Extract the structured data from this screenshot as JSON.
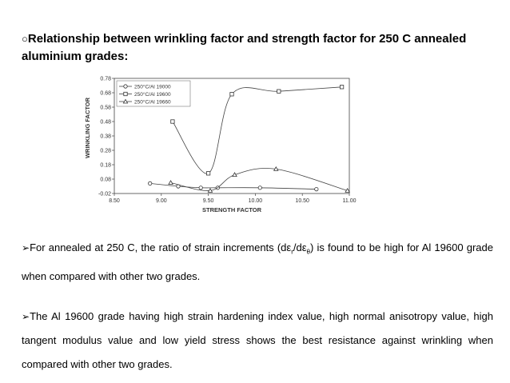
{
  "slide": {
    "heading_bullet": "○",
    "heading": "Relationship between wrinkling factor and strength factor for 250 C annealed aluminium grades:",
    "bullets": [
      {
        "marker": "➢",
        "text_before": "For annealed at 250 C, the ratio of strain increments (dε",
        "sub1": "r",
        "mid": "/dε",
        "sub2": "θ",
        "text_after": ") is found to be high for Al 19600 grade when compared with other two grades."
      },
      {
        "marker": "➢",
        "text": "The Al 19600 grade having high strain hardening index value, high normal anisotropy value, high tangent modulus value and low yield stress shows the best resistance against wrinkling when compared with other two grades."
      }
    ]
  },
  "chart_data": {
    "type": "line",
    "xlabel": "STRENGTH FACTOR",
    "ylabel": "WRINKLING FACTOR",
    "xlim": [
      8.5,
      11.0
    ],
    "ylim": [
      -0.02,
      0.78
    ],
    "x_ticks": [
      "8.50",
      "9.00",
      "9.50",
      "10.00",
      "10.50",
      "11.00"
    ],
    "x_tick_values": [
      8.5,
      9.0,
      9.5,
      10.0,
      10.5,
      11.0
    ],
    "y_ticks": [
      "0.78",
      "0.68",
      "0.58",
      "0.48",
      "0.38",
      "0.28",
      "0.18",
      "0.08",
      "-0.02"
    ],
    "y_tick_values": [
      0.78,
      0.68,
      0.58,
      0.48,
      0.38,
      0.28,
      0.18,
      0.08,
      -0.02
    ],
    "legend_position": "top-left",
    "grid": false,
    "series": [
      {
        "name": "250°C/Al 19000",
        "marker": "circle",
        "points": [
          [
            8.88,
            0.05
          ],
          [
            9.18,
            0.03
          ],
          [
            9.42,
            0.02
          ],
          [
            9.6,
            0.02
          ],
          [
            10.05,
            0.02
          ],
          [
            10.65,
            0.01
          ]
        ]
      },
      {
        "name": "250°C/Al 19600",
        "marker": "square",
        "points": [
          [
            9.12,
            0.48
          ],
          [
            9.5,
            0.12
          ],
          [
            9.75,
            0.67
          ],
          [
            10.25,
            0.69
          ],
          [
            10.92,
            0.72
          ]
        ]
      },
      {
        "name": "250°C/Al 19660",
        "marker": "triangle",
        "points": [
          [
            9.1,
            0.055
          ],
          [
            9.52,
            0.0
          ],
          [
            9.78,
            0.11
          ],
          [
            10.22,
            0.15
          ],
          [
            10.98,
            0.0
          ]
        ]
      }
    ]
  }
}
